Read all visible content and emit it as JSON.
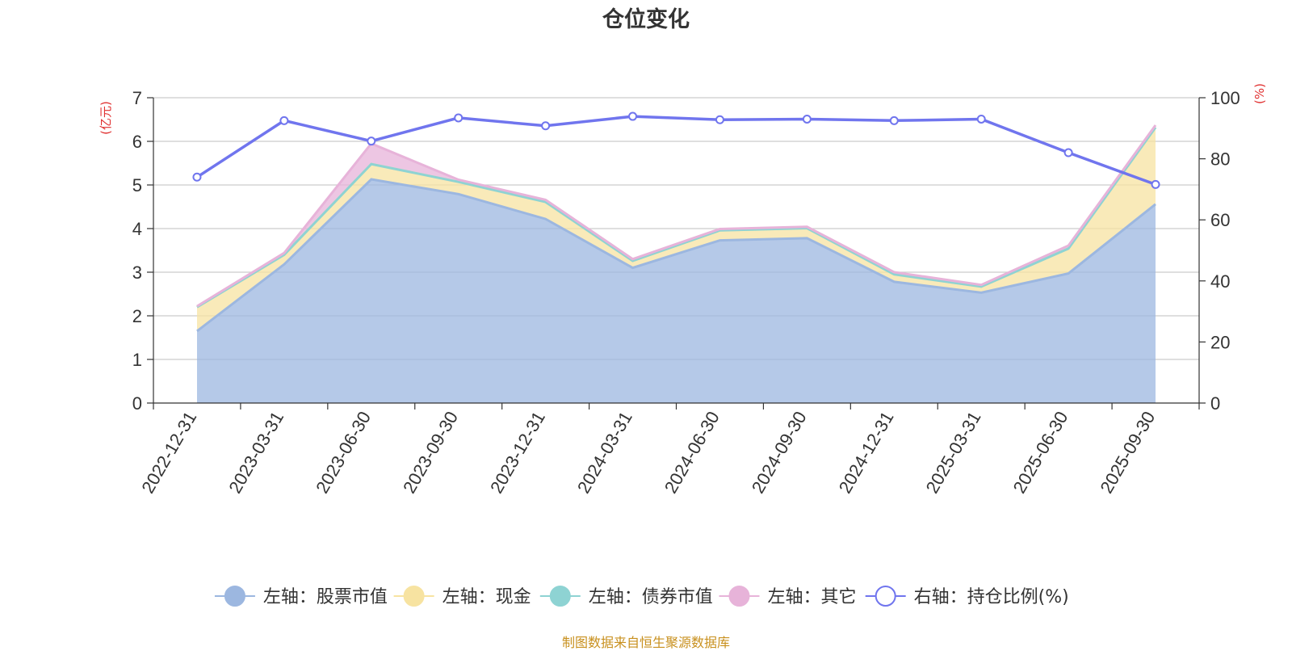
{
  "source": "制图数据来自恒生聚源数据库",
  "chart_data": {
    "type": "area",
    "title": "仓位变化",
    "y_left_unit": "(亿元)",
    "y_right_unit": "(%)",
    "categories": [
      "2022-12-31",
      "2023-03-31",
      "2023-06-30",
      "2023-09-30",
      "2023-12-31",
      "2024-03-31",
      "2024-06-30",
      "2024-09-30",
      "2024-12-31",
      "2025-03-31",
      "2025-06-30",
      "2025-09-30"
    ],
    "ylim_left": [
      0,
      7
    ],
    "yticks_left": [
      0,
      1,
      2,
      3,
      4,
      5,
      6,
      7
    ],
    "ylim_right": [
      0,
      100
    ],
    "yticks_right": [
      0,
      20,
      40,
      60,
      80,
      100
    ],
    "stacked_area_series": [
      {
        "name": "左轴：股票市值",
        "axis": "left",
        "color": "#9cb7e0",
        "values": [
          1.65,
          3.18,
          5.13,
          4.79,
          4.22,
          3.1,
          3.73,
          3.78,
          2.78,
          2.53,
          2.97,
          4.56
        ]
      },
      {
        "name": "左轴：现金",
        "axis": "left",
        "color": "#f7e3a1",
        "values": [
          0.55,
          0.22,
          0.35,
          0.28,
          0.39,
          0.16,
          0.23,
          0.23,
          0.17,
          0.14,
          0.57,
          1.76
        ]
      },
      {
        "name": "左轴：债券市值",
        "axis": "left",
        "color": "#8ed3d3",
        "values": [
          0,
          0,
          0,
          0,
          0,
          0,
          0,
          0,
          0,
          0,
          0,
          0
        ]
      },
      {
        "name": "左轴：其它",
        "axis": "left",
        "color": "#e7b3d9",
        "values": [
          0.02,
          0.04,
          0.47,
          0.05,
          0.05,
          0.04,
          0.03,
          0.03,
          0.05,
          0.04,
          0.07,
          0.05
        ]
      }
    ],
    "line_series": {
      "name": "右轴：持仓比例(%)",
      "axis": "right",
      "color": "#7075ee",
      "values": [
        74.0,
        92.5,
        85.8,
        93.4,
        90.8,
        93.9,
        92.8,
        93.0,
        92.5,
        93.0,
        82.0,
        71.6
      ]
    },
    "legend_position": "bottom",
    "grid": true
  }
}
